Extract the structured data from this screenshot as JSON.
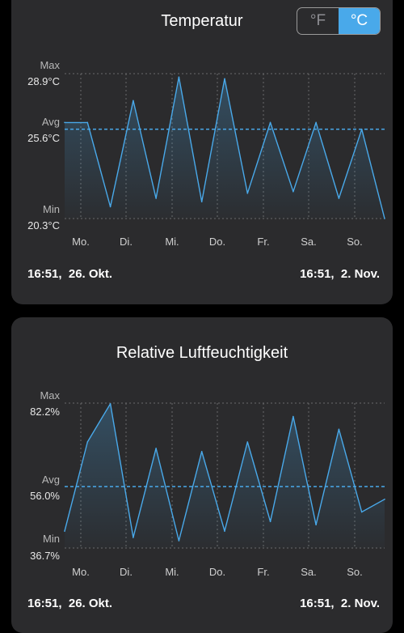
{
  "colors": {
    "accent": "#49a9ea",
    "card": "#2b2b2d",
    "background": "#000000"
  },
  "temperature": {
    "title": "Temperatur",
    "unit_toggle": {
      "fahrenheit": "°F",
      "celsius": "°C",
      "selected": "°C"
    },
    "max_label": "Max",
    "max_value": "28.9°C",
    "avg_label": "Avg",
    "avg_value": "25.6°C",
    "min_label": "Min",
    "min_value": "20.3°C",
    "days": [
      "Mo.",
      "Di.",
      "Mi.",
      "Do.",
      "Fr.",
      "Sa.",
      "So."
    ],
    "start_time": "16:51,  26. Okt.",
    "end_time": "16:51,  2. Nov."
  },
  "humidity": {
    "title": "Relative Luftfeuchtigkeit",
    "max_label": "Max",
    "max_value": "82.2%",
    "avg_label": "Avg",
    "avg_value": "56.0%",
    "min_label": "Min",
    "min_value": "36.7%",
    "days": [
      "Mo.",
      "Di.",
      "Mi.",
      "Do.",
      "Fr.",
      "Sa.",
      "So."
    ],
    "start_time": "16:51,  26. Okt.",
    "end_time": "16:51,  2. Nov."
  },
  "chart_data": [
    {
      "type": "line",
      "title": "Temperatur",
      "unit": "°C",
      "ylim": [
        20.3,
        28.9
      ],
      "avg": 25.6,
      "x": [
        "26. Okt. 16:51",
        "27. Okt. 06:00",
        "27. Okt. 18:00",
        "28. Okt. 06:00",
        "28. Okt. 18:00",
        "29. Okt. 06:00",
        "29. Okt. 18:00",
        "30. Okt. 06:00",
        "30. Okt. 18:00",
        "31. Okt. 06:00",
        "31. Okt. 18:00",
        "1. Nov. 06:00",
        "1. Nov. 18:00",
        "2. Nov. 06:00",
        "2. Nov. 16:51"
      ],
      "series": [
        {
          "values": [
            26.0,
            26.0,
            21.0,
            27.3,
            21.5,
            28.7,
            21.3,
            28.6,
            21.8,
            26.0,
            21.9,
            26.0,
            21.5,
            25.6,
            20.3
          ]
        }
      ]
    },
    {
      "type": "line",
      "title": "Relative Luftfeuchtigkeit",
      "unit": "%",
      "ylim": [
        36.7,
        82.2
      ],
      "avg": 56.0,
      "x": [
        "26. Okt. 16:51",
        "27. Okt. 06:00",
        "27. Okt. 18:00",
        "28. Okt. 06:00",
        "28. Okt. 18:00",
        "29. Okt. 06:00",
        "29. Okt. 18:00",
        "30. Okt. 06:00",
        "30. Okt. 18:00",
        "31. Okt. 06:00",
        "31. Okt. 18:00",
        "1. Nov. 06:00",
        "1. Nov. 18:00",
        "2. Nov. 06:00",
        "2. Nov. 16:51"
      ],
      "series": [
        {
          "values": [
            42.0,
            70.0,
            82.0,
            40.0,
            68.0,
            39.0,
            67.0,
            42.0,
            70.0,
            45.0,
            78.0,
            44.0,
            74.0,
            48.0,
            52.0
          ]
        }
      ]
    }
  ]
}
